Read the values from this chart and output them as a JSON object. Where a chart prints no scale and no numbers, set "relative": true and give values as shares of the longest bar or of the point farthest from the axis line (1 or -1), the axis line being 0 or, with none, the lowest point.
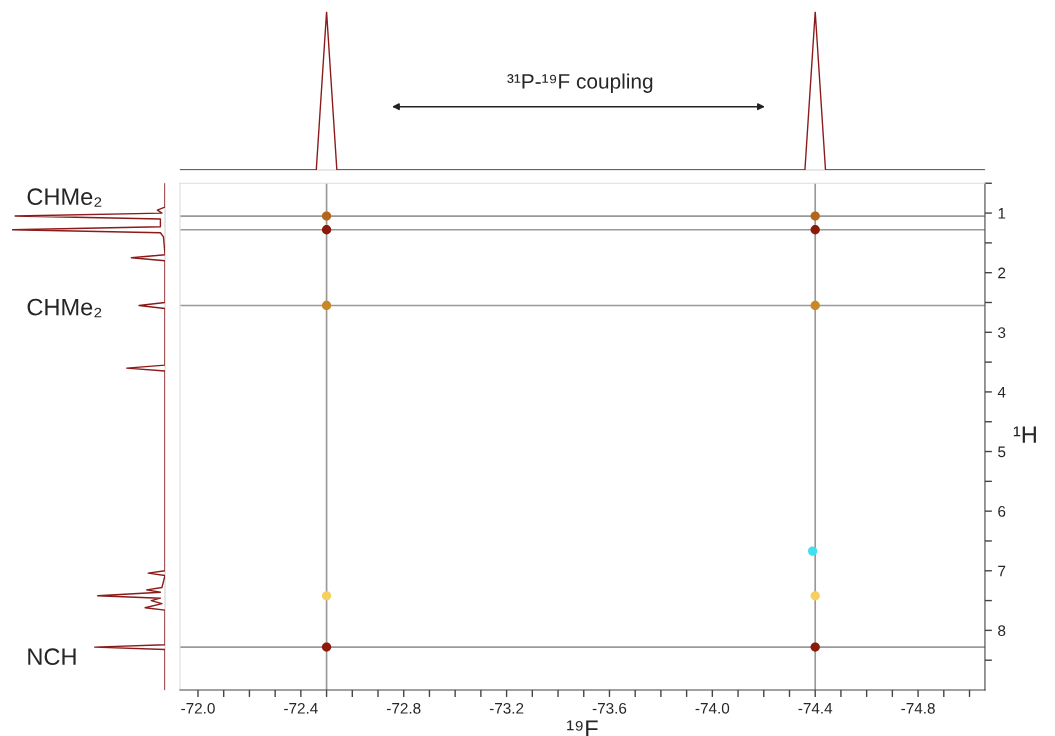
{
  "chart_data": [
    {
      "type": "line",
      "relative": true,
      "tick_labels": false,
      "grid": false,
      "xlim": [
        -71.93,
        -75.06
      ],
      "annotations": [
        "³¹P-¹⁹F coupling"
      ],
      "series": [
        {
          "color": "#8b1a1a",
          "x": [
            -71.93,
            -72.46,
            -72.5,
            -72.54,
            -74.36,
            -74.4,
            -74.44,
            -75.06
          ],
          "values": [
            0,
            0,
            1,
            0,
            0,
            1,
            0,
            0
          ]
        }
      ]
    },
    {
      "type": "line",
      "relative": true,
      "orientation": "horizontal",
      "tick_labels": false,
      "grid": false,
      "ylim": [
        9.0,
        0.5
      ],
      "annotations": [
        "CHMe₂",
        "CHMe₂",
        "NCH"
      ],
      "series": [
        {
          "color": "#8b1a1a",
          "x": [
            0.5,
            0.9,
            0.95,
            1.0,
            1.05,
            1.1,
            1.23,
            1.28,
            1.33,
            1.4,
            1.7,
            1.75,
            1.8,
            2.5,
            2.55,
            2.6,
            3.55,
            3.6,
            3.65,
            7.0,
            7.04,
            7.08,
            7.28,
            7.32,
            7.36,
            7.42,
            7.46,
            7.5,
            7.55,
            7.62,
            7.66,
            8.24,
            8.28,
            8.32,
            9.0
          ],
          "values": [
            0,
            0,
            -0.05,
            -0.02,
            -0.98,
            -0.03,
            -0.03,
            -1,
            -0.03,
            -0.01,
            0,
            -0.22,
            0,
            0,
            -0.17,
            0,
            0,
            -0.25,
            0,
            0,
            -0.11,
            0,
            -0.02,
            -0.12,
            -0.03,
            -0.44,
            -0.03,
            -0.09,
            -0.02,
            -0.13,
            0,
            0,
            -0.46,
            0,
            0
          ]
        }
      ]
    },
    {
      "type": "scatter",
      "grid": false,
      "xlabel": "¹⁹F",
      "ylabel": "¹H",
      "xlim": [
        -71.93,
        -75.06
      ],
      "ylim": [
        9.0,
        0.5
      ],
      "xticks": [
        {
          "value": -72.0,
          "label": "-72.0"
        },
        {
          "value": -72.1,
          "label": null
        },
        {
          "value": -72.2,
          "label": null
        },
        {
          "value": -72.3,
          "label": null
        },
        {
          "value": -72.4,
          "label": "-72.4"
        },
        {
          "value": -72.5,
          "label": null
        },
        {
          "value": -72.6,
          "label": null
        },
        {
          "value": -72.7,
          "label": null
        },
        {
          "value": -72.8,
          "label": "-72.8"
        },
        {
          "value": -72.9,
          "label": null
        },
        {
          "value": -73.0,
          "label": null
        },
        {
          "value": -73.1,
          "label": null
        },
        {
          "value": -73.2,
          "label": "-73.2"
        },
        {
          "value": -73.3,
          "label": null
        },
        {
          "value": -73.4,
          "label": null
        },
        {
          "value": -73.5,
          "label": null
        },
        {
          "value": -73.6,
          "label": "-73.6"
        },
        {
          "value": -73.7,
          "label": null
        },
        {
          "value": -73.8,
          "label": null
        },
        {
          "value": -73.9,
          "label": null
        },
        {
          "value": -74.0,
          "label": "-74.0"
        },
        {
          "value": -74.1,
          "label": null
        },
        {
          "value": -74.2,
          "label": null
        },
        {
          "value": -74.3,
          "label": null
        },
        {
          "value": -74.4,
          "label": "-74.4"
        },
        {
          "value": -74.5,
          "label": null
        },
        {
          "value": -74.6,
          "label": null
        },
        {
          "value": -74.7,
          "label": null
        },
        {
          "value": -74.8,
          "label": "-74.8"
        },
        {
          "value": -74.9,
          "label": null
        },
        {
          "value": -75.0,
          "label": null
        }
      ],
      "yticks": [
        {
          "value": 0.5,
          "label": null
        },
        1,
        {
          "value": 1.5,
          "label": null
        },
        2,
        {
          "value": 2.5,
          "label": null
        },
        3,
        {
          "value": 3.5,
          "label": null
        },
        4,
        {
          "value": 4.5,
          "label": null
        },
        5,
        {
          "value": 5.5,
          "label": null
        },
        6,
        {
          "value": 6.5,
          "label": null
        },
        7,
        {
          "value": 7.5,
          "label": null
        },
        8,
        {
          "value": 8.5,
          "label": null
        }
      ],
      "ref_lines": [
        {
          "axis": "y",
          "value": 1.05,
          "color": "#999999"
        },
        {
          "axis": "y",
          "value": 1.28,
          "color": "#999999"
        },
        {
          "axis": "y",
          "value": 2.55,
          "color": "#999999"
        },
        {
          "axis": "y",
          "value": 8.28,
          "color": "#999999"
        },
        {
          "axis": "x",
          "value": -72.5,
          "color": "#999999"
        },
        {
          "axis": "x",
          "value": -74.4,
          "color": "#999999"
        }
      ],
      "x": [
        -72.5,
        -72.5,
        -72.5,
        -72.5,
        -72.5,
        -74.4,
        -74.4,
        -74.4,
        -74.4,
        -74.4,
        -74.39
      ],
      "values": [
        1.05,
        1.28,
        2.55,
        7.42,
        8.28,
        1.05,
        1.28,
        2.55,
        7.42,
        8.28,
        6.67
      ],
      "colors": [
        "#b5651d",
        "#8b1a0a",
        "#c8882a",
        "#f5d060",
        "#8b1a0a",
        "#b5651d",
        "#8b1a0a",
        "#c8882a",
        "#f5d060",
        "#8b1a0a",
        "#40e0f0"
      ]
    }
  ]
}
